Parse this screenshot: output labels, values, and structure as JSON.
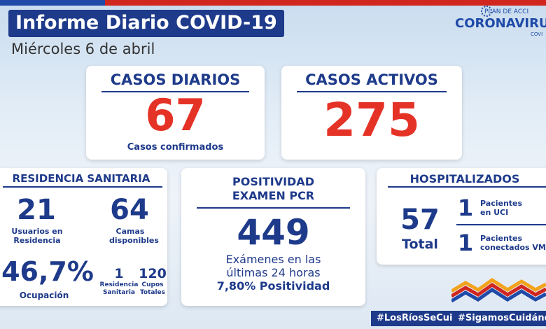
{
  "header": {
    "title": "Informe Diario COVID-19",
    "date": "Miércoles 6 de abril"
  },
  "logo": {
    "plan": "PLAN DE ACCI",
    "name": "CORONAVIRU",
    "sub": "COVI"
  },
  "casos_diarios": {
    "title": "CASOS DIARIOS",
    "value": "67",
    "caption": "Casos confirmados"
  },
  "casos_activos": {
    "title": "CASOS ACTIVOS",
    "value": "275"
  },
  "residencia": {
    "title": "RESIDENCIA SANITARIA",
    "usuarios_value": "21",
    "usuarios_label": "Usuarios en Residencia",
    "camas_value": "64",
    "camas_label": "Camas disponibles",
    "ocupacion_value": "46,7%",
    "ocupacion_label": "Ocupación",
    "residencia_value": "1",
    "residencia_label": "Residencia Sanitaria",
    "cupos_value": "120",
    "cupos_label": "Cupos Totales"
  },
  "positividad": {
    "title_1": "POSITIVIDAD",
    "title_2": "EXAMEN PCR",
    "value": "449",
    "line_1": "Exámenes en las",
    "line_2": "últimas 24 horas",
    "line_3": "7,80% Positividad"
  },
  "hospitalizados": {
    "title": "HOSPITALIZADOS",
    "total_value": "57",
    "total_label": "Total",
    "uci_value": "1",
    "uci_label_1": "Pacientes",
    "uci_label_2": "en UCI",
    "vm_value": "1",
    "vm_label_1": "Pacientes",
    "vm_label_2": "conectados VM"
  },
  "footer": {
    "tag_1": "#LosRíosSeCuida",
    "tag_2": "#SigamosCuidándon"
  },
  "colors": {
    "navy": "#1e3a8a",
    "red": "#e53226",
    "accent_blue": "#1f4aa8"
  }
}
